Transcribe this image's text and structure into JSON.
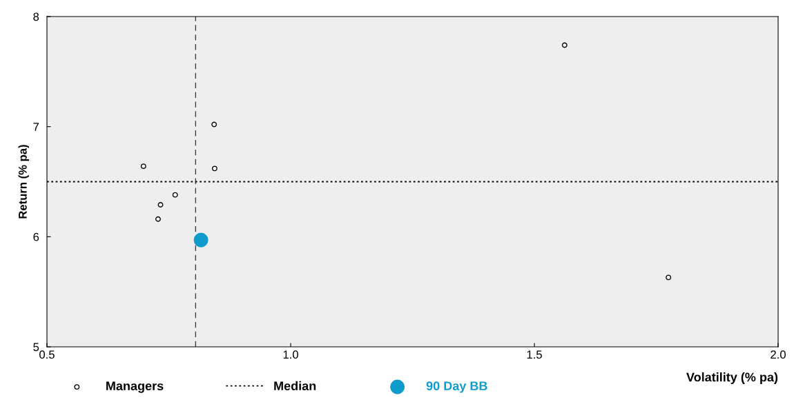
{
  "chart_data": {
    "type": "scatter",
    "xlabel": "Volatility (% pa)",
    "ylabel": "Return (% pa)",
    "xlim": [
      0.5,
      2.0
    ],
    "xticks": [
      {
        "value": 0.5,
        "label": "0.5"
      },
      {
        "value": 1.0,
        "label": "1.0"
      },
      {
        "value": 1.5,
        "label": "1.5"
      },
      {
        "value": 2.0,
        "label": "2.0"
      }
    ],
    "ylim": [
      5,
      8
    ],
    "yticks": [
      5,
      6,
      7,
      8
    ],
    "grid": false,
    "legend": "bottom",
    "series": [
      {
        "name": "Managers",
        "color": "#000000",
        "marker": "circle",
        "x": [
          0.698,
          0.733,
          0.728,
          0.763,
          0.843,
          0.844,
          1.562,
          1.775
        ],
        "values": [
          6.64,
          6.29,
          6.16,
          6.38,
          7.02,
          6.62,
          7.74,
          5.63
        ]
      },
      {
        "name": "90 Day BB",
        "color": "#0f9ccc",
        "marker": "circle",
        "x": [
          0.816
        ],
        "values": [
          5.97
        ]
      }
    ],
    "ref_lines": [
      {
        "axis": "x",
        "value": 0.805,
        "line_style": "dashed",
        "color": "#404040"
      },
      {
        "axis": "y",
        "value": 6.5,
        "label": "Median",
        "line_style": "dotted",
        "color": "#000000"
      }
    ]
  }
}
